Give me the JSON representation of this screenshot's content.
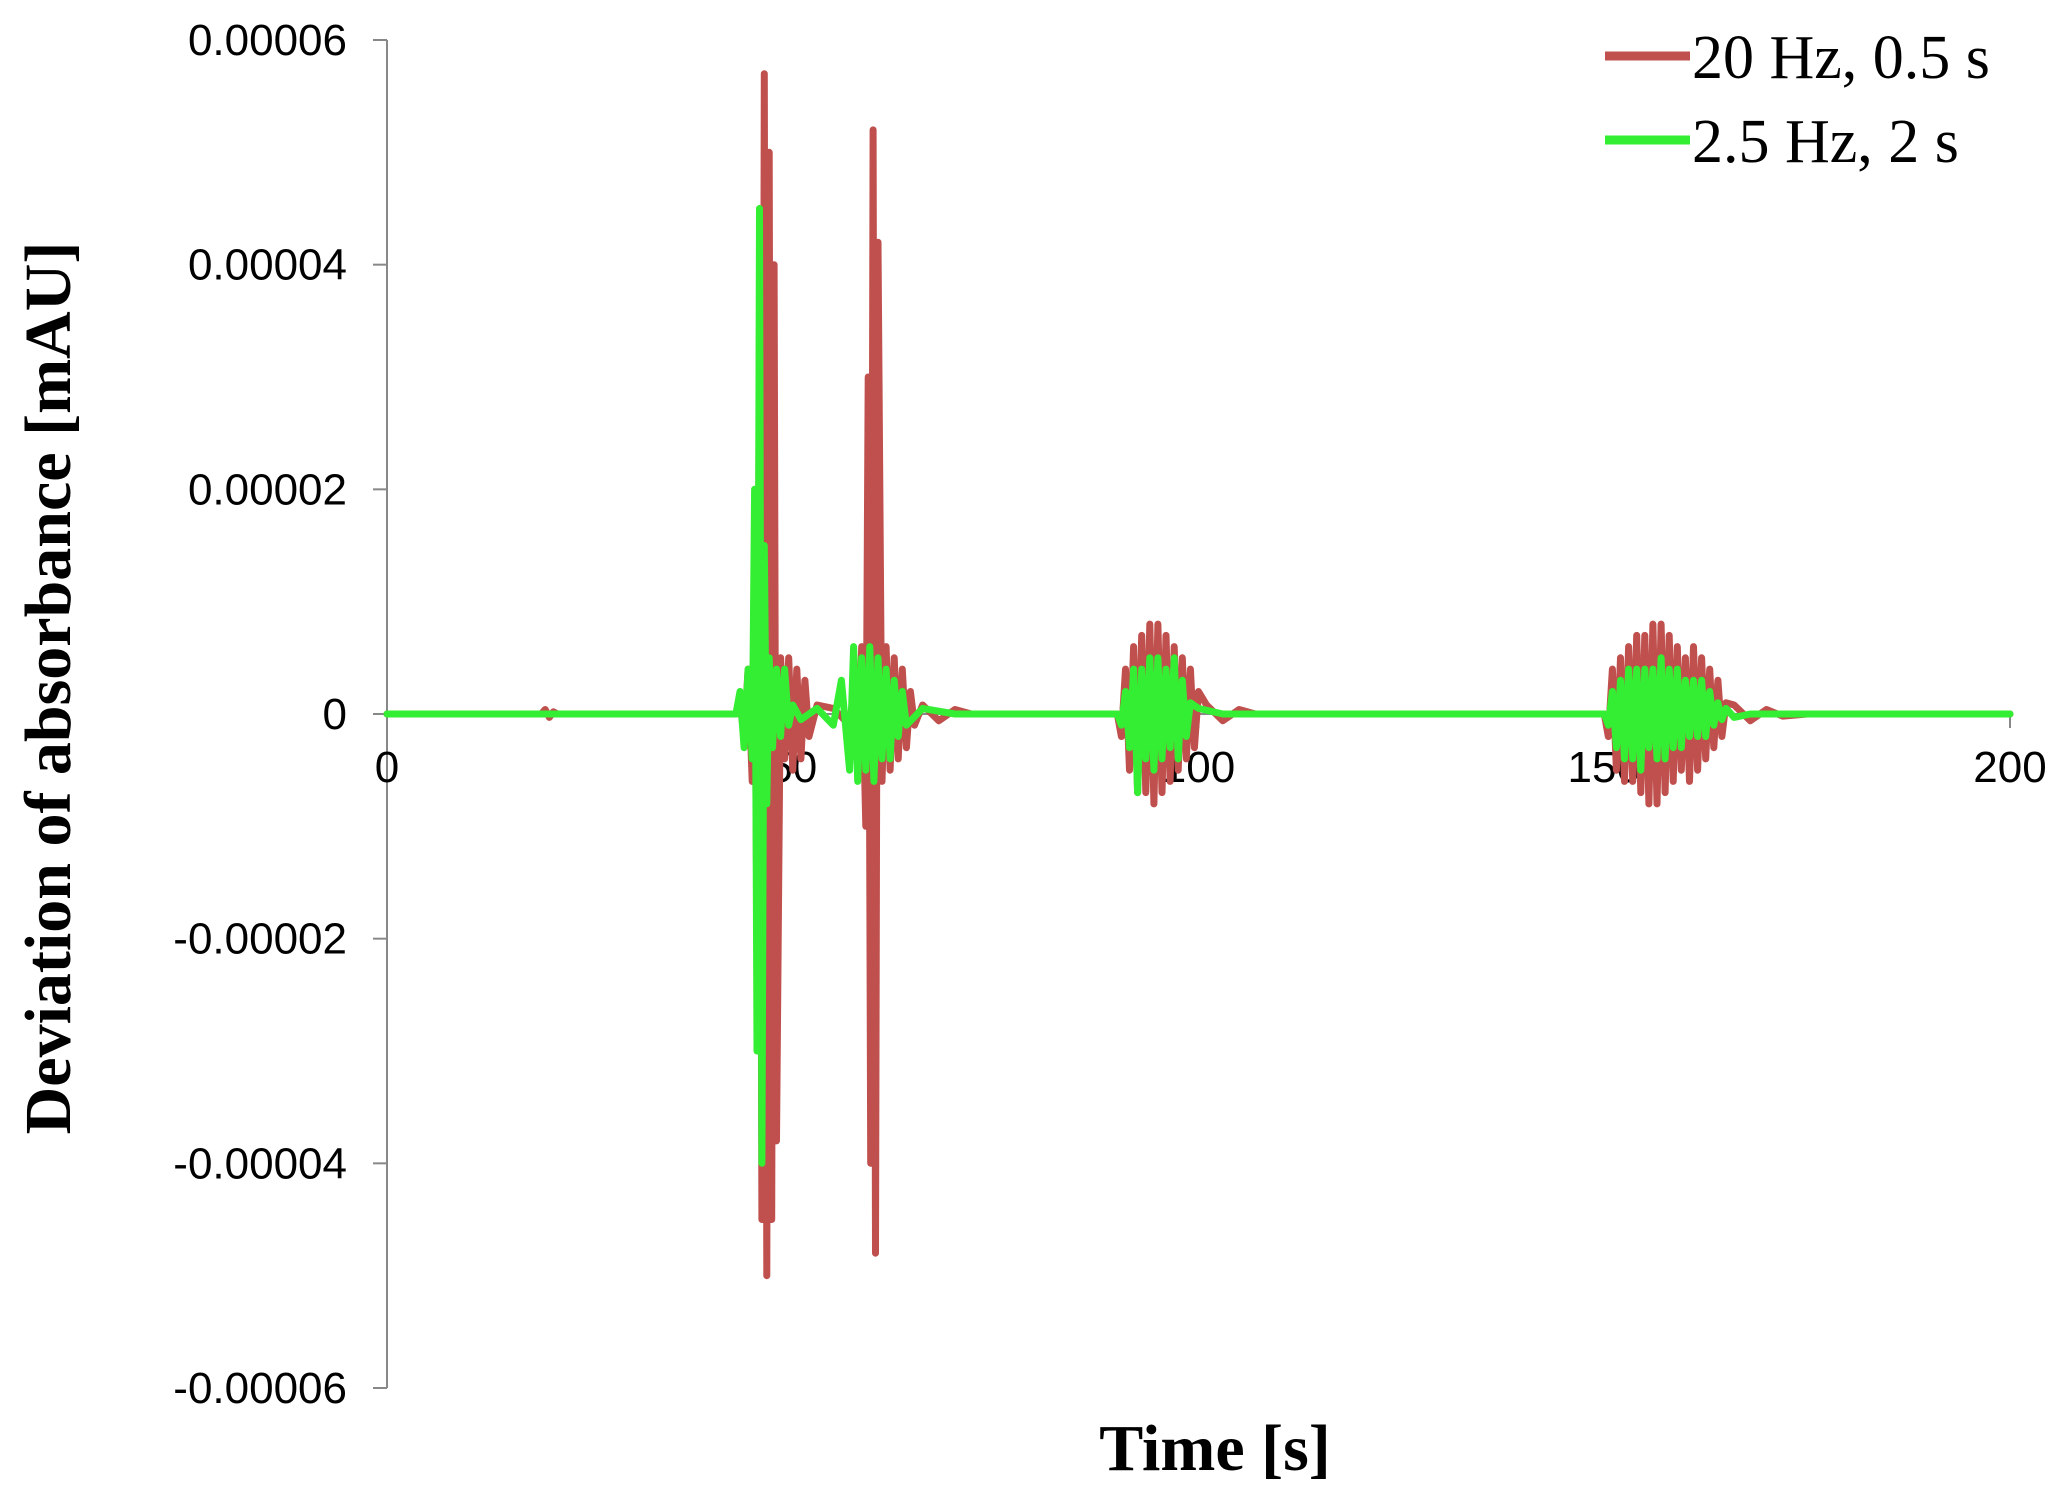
{
  "chart_data": {
    "type": "line",
    "title": "",
    "xlabel": "Time [s]",
    "ylabel": "Deviation of absorbance [mAU]",
    "xlim": [
      0,
      200
    ],
    "ylim": [
      -6e-05,
      6e-05
    ],
    "x_ticks": [
      "0",
      "50",
      "100",
      "150",
      "200"
    ],
    "y_ticks": [
      "0.00006",
      "0.00004",
      "0.00002",
      "0",
      "-0.00002",
      "-0.00004",
      "-0.00006"
    ],
    "grid": false,
    "legend_position": "top-right",
    "series": [
      {
        "name": "20 Hz, 0.5 s",
        "color": "#c0504d",
        "x": [
          0,
          19,
          19.5,
          20,
          20.5,
          21,
          43,
          43.5,
          44,
          44.5,
          45,
          45.3,
          45.6,
          45.9,
          46.2,
          46.5,
          46.8,
          47.1,
          47.4,
          47.7,
          48,
          48.5,
          49,
          49.5,
          50,
          50.5,
          51,
          51.5,
          52,
          53,
          55,
          57,
          57.5,
          58,
          58.5,
          59,
          59.3,
          59.6,
          59.9,
          60.2,
          60.5,
          61,
          61.5,
          62,
          62.5,
          63,
          63.5,
          64,
          64.5,
          65,
          66,
          68,
          70,
          72,
          90,
          90.5,
          91,
          91.5,
          92,
          92.5,
          93,
          93.5,
          94,
          94.5,
          95,
          95.5,
          96,
          96.5,
          97,
          97.5,
          98,
          98.5,
          99,
          99.5,
          100,
          101,
          103,
          105,
          107,
          150,
          150.5,
          151,
          151.5,
          152,
          152.5,
          153,
          153.5,
          154,
          154.5,
          155,
          155.5,
          156,
          156.5,
          157,
          157.5,
          158,
          158.5,
          159,
          159.5,
          160,
          160.5,
          161,
          161.5,
          162,
          162.5,
          163,
          163.5,
          164,
          164.5,
          165,
          166,
          168,
          170,
          172,
          175,
          200
        ],
        "values": [
          0,
          0,
          4e-07,
          -3e-07,
          2e-07,
          0,
          0,
          1e-06,
          -2e-06,
          4e-06,
          -6e-06,
          1e-05,
          -2e-05,
          3.5e-05,
          -4.5e-05,
          5.7e-05,
          -5e-05,
          5e-05,
          -4.5e-05,
          4e-05,
          -3.8e-05,
          5e-06,
          -4e-06,
          5e-06,
          -5e-06,
          4e-06,
          -4e-06,
          3e-06,
          -2e-06,
          8e-07,
          5e-07,
          -1e-06,
          2e-06,
          -4e-06,
          6e-06,
          -1e-05,
          3e-05,
          -4e-05,
          5.2e-05,
          -4.8e-05,
          4.2e-05,
          -6e-06,
          6e-06,
          -5e-06,
          5e-06,
          -4e-06,
          4e-06,
          -3e-06,
          2e-06,
          -1e-06,
          8e-07,
          -6e-07,
          4e-07,
          0,
          0,
          -2e-06,
          4e-06,
          -5e-06,
          6e-06,
          -7e-06,
          7e-06,
          -7e-06,
          8e-06,
          -8e-06,
          8e-06,
          -7e-06,
          7e-06,
          -6e-06,
          6e-06,
          -5e-06,
          5e-06,
          -4e-06,
          4e-06,
          -3e-06,
          2e-06,
          8e-07,
          -6e-07,
          4e-07,
          0,
          0,
          -2e-06,
          4e-06,
          -5e-06,
          5e-06,
          -6e-06,
          6e-06,
          -6e-06,
          7e-06,
          -7e-06,
          7e-06,
          -8e-06,
          8e-06,
          -8e-06,
          8e-06,
          -7e-06,
          7e-06,
          -6e-06,
          6e-06,
          -5e-06,
          5e-06,
          -6e-06,
          6e-06,
          -5e-06,
          5e-06,
          -4e-06,
          4e-06,
          -3e-06,
          3e-06,
          -2e-06,
          1e-06,
          8e-07,
          -6e-07,
          4e-07,
          -2e-07,
          0,
          0
        ]
      },
      {
        "name": "2.5 Hz, 2 s",
        "color": "#33ee33",
        "x": [
          0,
          43,
          43.5,
          44,
          44.5,
          45,
          45.3,
          45.6,
          45.9,
          46.2,
          46.5,
          46.8,
          47.1,
          47.5,
          48,
          48.5,
          49,
          49.5,
          50,
          51,
          53,
          55,
          56,
          57,
          57.5,
          58,
          58.5,
          59,
          59.5,
          60,
          60.5,
          61,
          61.5,
          62,
          62.5,
          63,
          63.5,
          64,
          66,
          70,
          90,
          90.5,
          91,
          91.5,
          92,
          92.5,
          93,
          93.5,
          94,
          94.5,
          95,
          95.5,
          96,
          96.5,
          97,
          97.5,
          98,
          98.5,
          99,
          100,
          103,
          150,
          150.5,
          151,
          151.5,
          152,
          152.5,
          153,
          153.5,
          154,
          154.5,
          155,
          155.5,
          156,
          156.5,
          157,
          157.5,
          158,
          158.5,
          159,
          159.5,
          160,
          160.5,
          161,
          161.5,
          162,
          162.5,
          163,
          163.5,
          164,
          164.5,
          165,
          166,
          168,
          170,
          200
        ],
        "values": [
          0,
          0,
          2e-06,
          -3e-06,
          4e-06,
          -4e-06,
          2e-05,
          -3e-05,
          4.5e-05,
          -4e-05,
          1.5e-05,
          -8e-06,
          5e-06,
          -3e-06,
          4e-06,
          -2e-06,
          4e-06,
          -1e-06,
          8e-07,
          -5e-07,
          5e-07,
          -1e-06,
          3e-06,
          -5e-06,
          6e-06,
          -6e-06,
          5e-06,
          -5e-06,
          6e-06,
          -6e-06,
          5e-06,
          -4e-06,
          4e-06,
          -4e-06,
          3e-06,
          -2e-06,
          2e-06,
          -1e-06,
          5e-07,
          0,
          0,
          -1e-06,
          2e-06,
          -3e-06,
          4e-06,
          -7e-06,
          4e-06,
          -4e-06,
          5e-06,
          -5e-06,
          5e-06,
          -4e-06,
          4e-06,
          -3e-06,
          5e-06,
          -4e-06,
          3e-06,
          -2e-06,
          1e-06,
          5e-07,
          0,
          0,
          -1e-06,
          2e-06,
          -3e-06,
          3e-06,
          -4e-06,
          4e-06,
          -4e-06,
          4e-06,
          -5e-06,
          4e-06,
          -3e-06,
          4e-06,
          -4e-06,
          5e-06,
          -4e-06,
          4e-06,
          -3e-06,
          4e-06,
          -3e-06,
          3e-06,
          -2e-06,
          3e-06,
          -2e-06,
          3e-06,
          -2e-06,
          2e-06,
          -1e-06,
          1e-06,
          -5e-07,
          5e-07,
          -3e-07,
          0,
          0,
          0
        ]
      }
    ]
  }
}
